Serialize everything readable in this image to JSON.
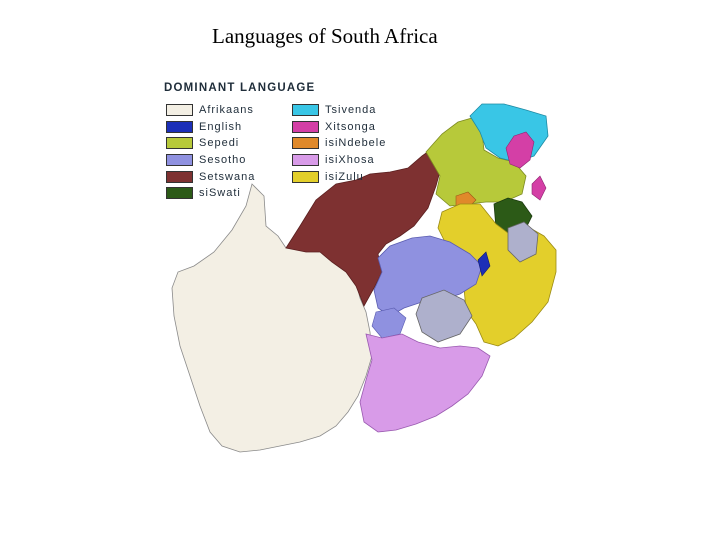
{
  "slide": {
    "title": "Languages of South Africa"
  },
  "map": {
    "legend_title": "DOMINANT LANGUAGE",
    "legend_left": [
      {
        "label": "Afrikaans",
        "color": "#f3efe4"
      },
      {
        "label": "English",
        "color": "#1c2fb8"
      },
      {
        "label": "Sepedi",
        "color": "#b7c93a"
      },
      {
        "label": "Sesotho",
        "color": "#8f91e0"
      },
      {
        "label": "Setswana",
        "color": "#7e3131"
      },
      {
        "label": "siSwati",
        "color": "#2c5a17"
      }
    ],
    "legend_right": [
      {
        "label": "Tsivenda",
        "color": "#39c6e6"
      },
      {
        "label": "Xitsonga",
        "color": "#d43fa6"
      },
      {
        "label": "isiNdebele",
        "color": "#e0892a"
      },
      {
        "label": "isiXhosa",
        "color": "#d89be8"
      },
      {
        "label": "isiZulu",
        "color": "#e3cf2b"
      }
    ]
  }
}
